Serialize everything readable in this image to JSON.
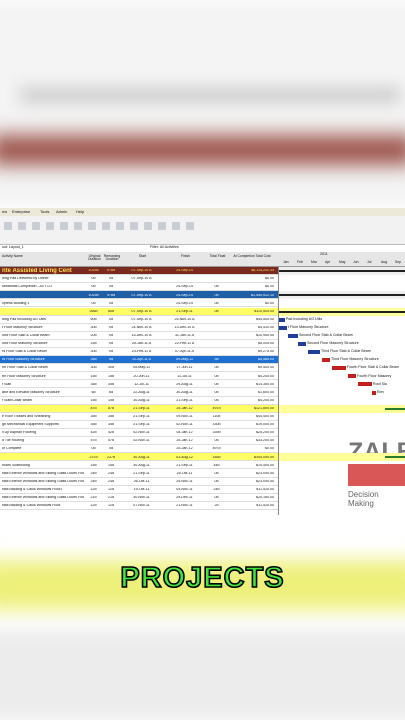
{
  "caption": "PROJECTS",
  "menu": [
    "ew",
    "Enterprise",
    "Tools",
    "Admin",
    "Help"
  ],
  "layout_label": "out: Layout_1",
  "filter_label": "Filter: All Activities",
  "columns": [
    "Activity Name",
    "Original Duration",
    "Remaining Duration",
    "Start",
    "Finish",
    "Total Float",
    "At Completion Total Cost"
  ],
  "gantt_year": "2011",
  "months": [
    "Jan",
    "Feb",
    "Mar",
    "Apr",
    "May",
    "Jun",
    "Jul",
    "Aug",
    "Sep"
  ],
  "rows": [
    {
      "style": "project",
      "cells": [
        "nte Assisted Living Cent",
        "1025d",
        "978d",
        "07-Sep-10 A",
        "24-Sep-14",
        "",
        "$6,115,202.34"
      ]
    },
    {
      "style": "plain",
      "cells": [
        "ding Pad Delivered by Owner",
        "0d",
        "0d",
        "07-Sep-10 A",
        "",
        "",
        "$0.00"
      ]
    },
    {
      "style": "plain",
      "cells": [
        "ubstantial Completion - All TCO",
        "0d",
        "0d",
        "",
        "24-Sep-14",
        "0d",
        "$0.00"
      ]
    },
    {
      "style": "wbs",
      "cells": [
        "",
        "1025d",
        "978d",
        "07-Sep-10 A",
        "24-Sep-14",
        "0d",
        "$1,440,912.10"
      ]
    },
    {
      "style": "plain",
      "cells": [
        "xpress Building 1",
        "0d",
        "0d",
        "",
        "24-Sep-14",
        "0d",
        "$0.00"
      ]
    },
    {
      "style": "group",
      "cells": [
        "",
        "266d",
        "85d",
        "07-Sep-10 A",
        "21-Sep-11",
        "0d",
        "$110,505.00"
      ]
    },
    {
      "style": "plain",
      "cells": [
        "ding Pad Including UG Utils",
        "60d",
        "0d",
        "07-Sep-10 A",
        "25-Nov-10 A",
        "",
        "$45,500.00"
      ]
    },
    {
      "style": "plain",
      "cells": [
        "t Floor Masonry Structure",
        "30d",
        "0d",
        "24-Nov-10 A",
        "13-Dec-10 A",
        "",
        "$4,410.00"
      ]
    },
    {
      "style": "plain",
      "cells": [
        "ond Floor Slab & Collar Beam",
        "20d",
        "0d",
        "15-Dec-10 A",
        "31-Jan-11 A",
        "",
        "$10,950.00"
      ]
    },
    {
      "style": "plain",
      "cells": [
        "ond Floor Masonry Structure",
        "15d",
        "0d",
        "25-Jan-11 A",
        "22-Feb-11 A",
        "",
        "$5,005.00"
      ]
    },
    {
      "style": "plain",
      "cells": [
        "rd Floor Slab & Collar Beam",
        "30d",
        "0d",
        "24-Feb-11 A",
        "07-Apr-11 A",
        "",
        "$9,275.00"
      ]
    },
    {
      "style": "selected",
      "cells": [
        "rd Floor Masonry Structure",
        "35d",
        "5d",
        "12-Apr-11 A",
        "09-May-11",
        "5d",
        "$4,585.00"
      ]
    },
    {
      "style": "plain",
      "cells": [
        "rth Floor Slab & Collar Beam",
        "30d",
        "30d",
        "05-May-11",
        "17-Jun-11",
        "0d",
        "$9,400.00"
      ]
    },
    {
      "style": "plain",
      "cells": [
        "rth Floor Masonry Structure",
        "15d",
        "15d",
        "20-Jun-11",
        "11-Jul-11",
        "0d",
        "$4,200.00"
      ]
    },
    {
      "style": "plain",
      "cells": [
        "f Slab",
        "35d",
        "35d",
        "12-Jul-11",
        "29-Aug-11",
        "0d",
        "$14,350.00"
      ]
    },
    {
      "style": "plain",
      "cells": [
        "ator and Elevator Masonry Structure",
        "6d",
        "6d",
        "22-Aug-11",
        "30-Aug-11",
        "0d",
        "$1,600.00"
      ]
    },
    {
      "style": "plain",
      "cells": [
        "f Slab/Collar Beam",
        "15d",
        "15d",
        "30-Aug-11",
        "21-Sep-11",
        "0d",
        "$4,200.00"
      ]
    },
    {
      "style": "group",
      "cells": [
        "",
        "87d",
        "87d",
        "21-Sep-11",
        "25-Jan-12",
        "497d",
        "$121,800.00"
      ]
    },
    {
      "style": "plain",
      "cells": [
        "e Roof Trusses and Sheathing",
        "35d",
        "35d",
        "21-Sep-11",
        "09-Nov-11",
        "110d",
        "$44,400.00"
      ]
    },
    {
      "style": "plain",
      "cells": [
        "gh Mechanical Equipment Supports",
        "35d",
        "35d",
        "21-Sep-11",
        "02-Nov-11",
        "330d",
        "$19,000.00"
      ]
    },
    {
      "style": "plain",
      "cells": [
        "ll Up Asphalt Flooring",
        "42d",
        "42d",
        "02-Nov-11",
        "04-Jan-12",
        "339d",
        "$25,200.00"
      ]
    },
    {
      "style": "plain",
      "cells": [
        "d Tile Roofing",
        "57d",
        "57d",
        "02-Nov-11",
        "25-Jan-12",
        "0d",
        "$33,200.00"
      ]
    },
    {
      "style": "plain",
      "cells": [
        "of Complete",
        "0d",
        "0d",
        "",
        "25-Jan-12",
        "497d",
        "$0.00"
      ]
    },
    {
      "style": "group",
      "cells": [
        "",
        "237d",
        "237d",
        "30-Aug-11",
        "03-Aug-12",
        "185d",
        "$305,040.00"
      ]
    },
    {
      "style": "plain",
      "cells": [
        "rudes Scaffolding",
        "15d",
        "15d",
        "30-Aug-11",
        "21-Sep-11",
        "44d",
        "$14,400.00"
      ]
    },
    {
      "style": "plain",
      "cells": [
        "stall Exterior Windows and Sliding Glass Doors Floor",
        "24d",
        "24d",
        "21-Sep-11",
        "25-Oct-11",
        "0d",
        "$23,040.00"
      ]
    },
    {
      "style": "plain",
      "cells": [
        "stall Exterior Windows and Sliding Glass Doors Floor",
        "24d",
        "24d",
        "26-Oct-11",
        "29-Nov-11",
        "0d",
        "$23,040.00"
      ]
    },
    {
      "style": "plain",
      "cells": [
        "stall Backing & Caulk Windows Floor1",
        "12d",
        "12d",
        "19-Oct-11",
        "04-Nov-11",
        "24d",
        "$11,520.00"
      ]
    },
    {
      "style": "plain",
      "cells": [
        "stall Exterior Windows and Sliding Glass Doors Floor",
        "21d",
        "21d",
        "30-Nov-11",
        "29-Dec-11",
        "0d",
        "$20,160.00"
      ]
    },
    {
      "style": "plain",
      "cells": [
        "stall Backing & Caulk Windows Floor",
        "12d",
        "12d",
        "07-Nov-11",
        "21-Nov-11",
        "2d",
        "$11,520.00"
      ]
    }
  ],
  "gantt_labels": [
    "Pad Including UG Utils",
    "t Floor Masonry Structure",
    "Second Floor Slab & Collar Beam",
    "Second Floor Masonry Structure",
    "Third Floor Slab & Collar Beam",
    "Third Floor Masonry Structure",
    "Fourth Floor Slab & Collar Beam",
    "Fourth Floor Masonry",
    "Roof Sla",
    "Elev"
  ],
  "watermark": {
    "brand": "ZALBA",
    "tagline": "Decision Making"
  }
}
